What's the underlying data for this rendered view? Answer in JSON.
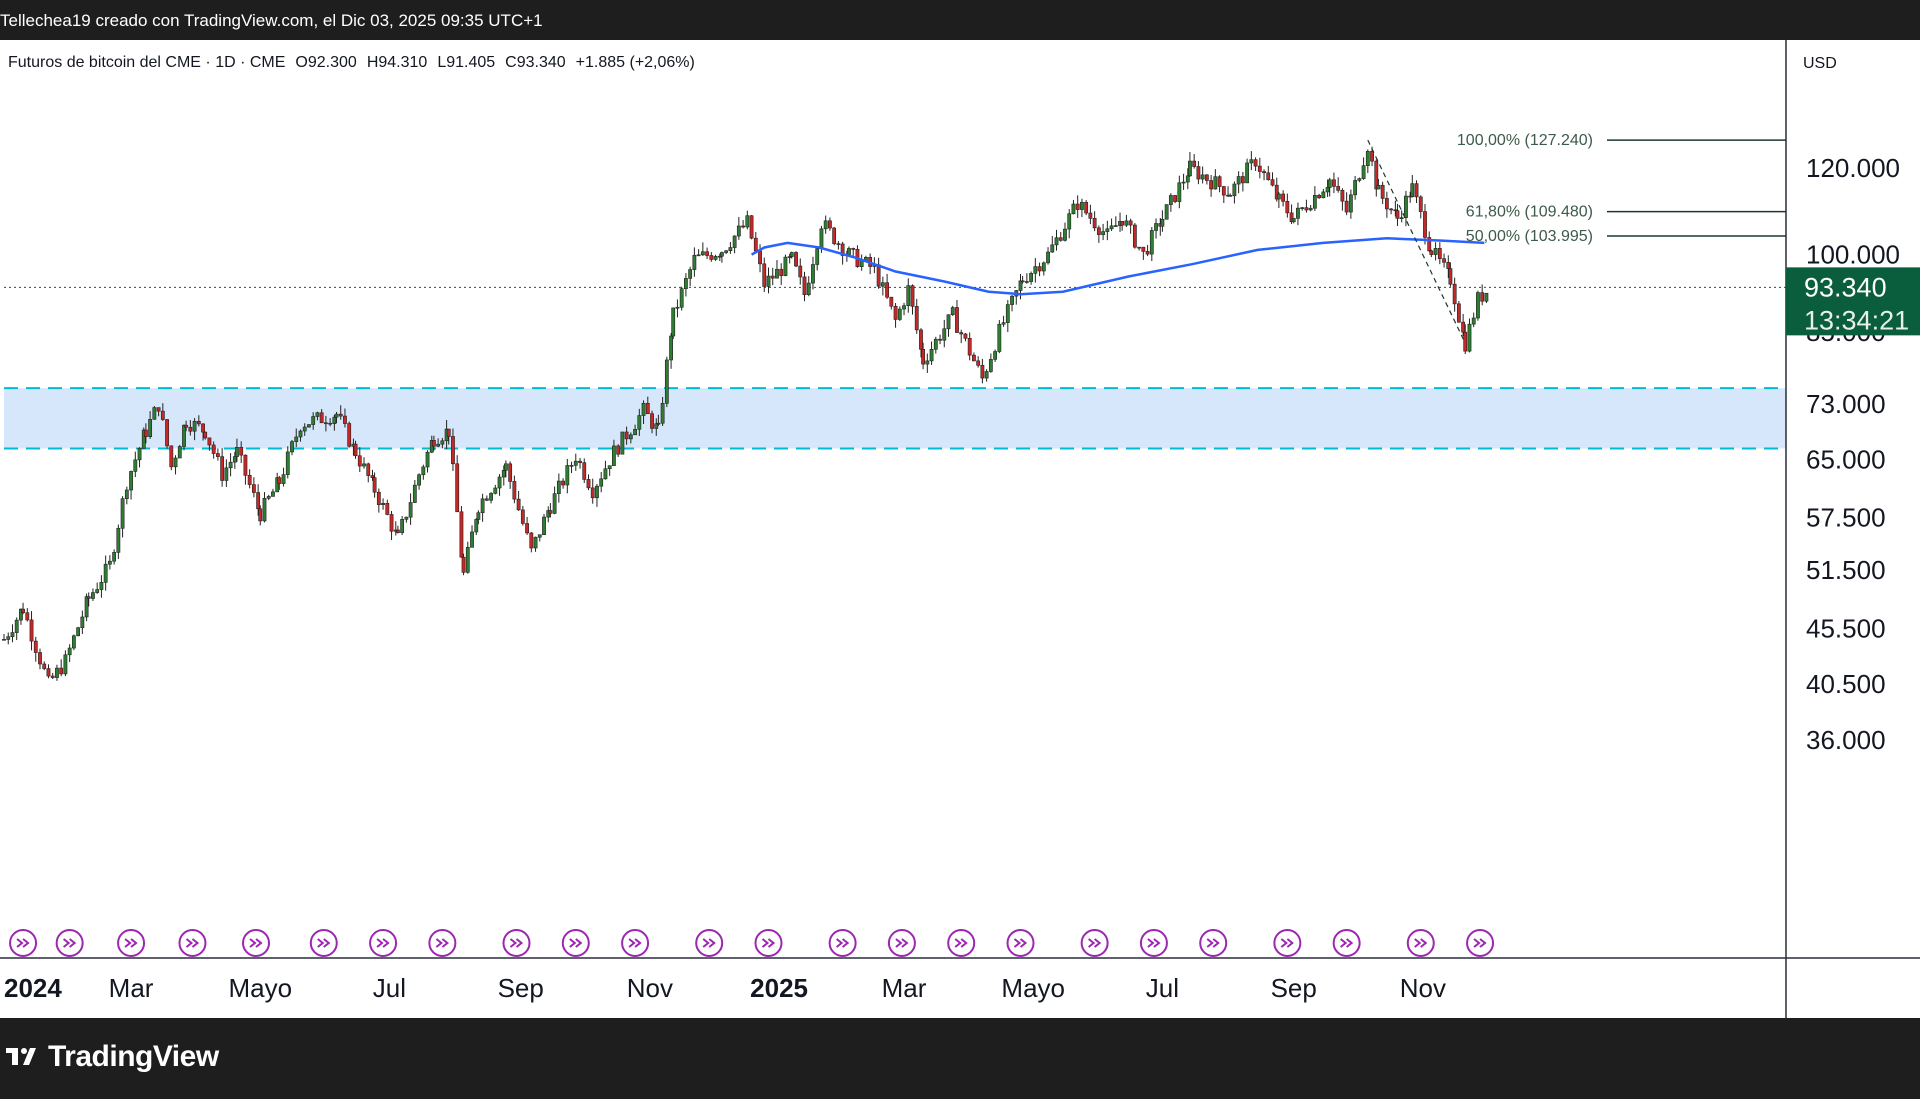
{
  "header": {
    "text": "Tellechea19 creado con TradingView.com, el Dic 03, 2025 09:35 UTC+1"
  },
  "legend": {
    "symbol": "Futuros de bitcoin del CME · 1D · CME",
    "open": "O92.300",
    "high": "H94.310",
    "low": "L91.405",
    "close": "C93.340",
    "change": "+1.885 (+2,06%)"
  },
  "price_axis": {
    "currency": "USD"
  },
  "last_price": {
    "value": "93.340",
    "countdown": "13:34:21"
  },
  "footer": {
    "brand": "TradingView"
  },
  "colors": {
    "up": "#26a69a",
    "down": "#ef5350",
    "candle_up_fill": "#2e7d32",
    "candle_down_fill": "#c62828",
    "ma": "#2962ff",
    "zone_fill": "#d6e6fb",
    "zone_line": "#00bcd4",
    "last_price_bg": "#0b5e3d",
    "event_icon": "#9c27b0"
  },
  "chart_data": {
    "type": "candlestick",
    "scale": "log",
    "y_ticks": [
      36000,
      40500,
      45500,
      51500,
      57500,
      65000,
      73000,
      85000,
      100000,
      120000
    ],
    "y_tick_labels": [
      "36.000",
      "40.500",
      "45.500",
      "51.500",
      "57.500",
      "65.000",
      "73.000",
      "85.000",
      "100.000",
      "120.000"
    ],
    "x_ticks": [
      {
        "label": "2024",
        "date": "2024-01-01",
        "bold": true
      },
      {
        "label": "Mar",
        "date": "2024-03-01"
      },
      {
        "label": "Mayo",
        "date": "2024-05-01"
      },
      {
        "label": "Jul",
        "date": "2024-07-01"
      },
      {
        "label": "Sep",
        "date": "2024-09-01"
      },
      {
        "label": "Nov",
        "date": "2024-11-01"
      },
      {
        "label": "2025",
        "date": "2025-01-01",
        "bold": true
      },
      {
        "label": "Mar",
        "date": "2025-03-01"
      },
      {
        "label": "Mayo",
        "date": "2025-05-01"
      },
      {
        "label": "Jul",
        "date": "2025-07-01"
      },
      {
        "label": "Sep",
        "date": "2025-09-01"
      },
      {
        "label": "Nov",
        "date": "2025-11-01"
      }
    ],
    "price_path": [
      [
        "2024-01-01",
        44500
      ],
      [
        "2024-01-10",
        47500
      ],
      [
        "2024-01-22",
        40500
      ],
      [
        "2024-01-30",
        42500
      ],
      [
        "2024-02-10",
        48500
      ],
      [
        "2024-02-20",
        52000
      ],
      [
        "2024-02-28",
        62000
      ],
      [
        "2024-03-08",
        69000
      ],
      [
        "2024-03-14",
        73000
      ],
      [
        "2024-03-20",
        64000
      ],
      [
        "2024-03-27",
        70500
      ],
      [
        "2024-04-05",
        69000
      ],
      [
        "2024-04-13",
        63000
      ],
      [
        "2024-04-20",
        66000
      ],
      [
        "2024-05-01",
        58000
      ],
      [
        "2024-05-10",
        62000
      ],
      [
        "2024-05-20",
        70000
      ],
      [
        "2024-06-06",
        71500
      ],
      [
        "2024-06-15",
        66000
      ],
      [
        "2024-06-24",
        61000
      ],
      [
        "2024-07-05",
        55000
      ],
      [
        "2024-07-15",
        63000
      ],
      [
        "2024-07-22",
        68000
      ],
      [
        "2024-07-29",
        69000
      ],
      [
        "2024-08-05",
        51000
      ],
      [
        "2024-08-12",
        59000
      ],
      [
        "2024-08-25",
        64000
      ],
      [
        "2024-09-06",
        53500
      ],
      [
        "2024-09-15",
        59000
      ],
      [
        "2024-09-27",
        65500
      ],
      [
        "2024-10-05",
        61000
      ],
      [
        "2024-10-15",
        66000
      ],
      [
        "2024-10-29",
        72000
      ],
      [
        "2024-11-05",
        69000
      ],
      [
        "2024-11-12",
        88000
      ],
      [
        "2024-11-22",
        99000
      ],
      [
        "2024-12-05",
        101000
      ],
      [
        "2024-12-17",
        107000
      ],
      [
        "2024-12-25",
        94000
      ],
      [
        "2025-01-07",
        99000
      ],
      [
        "2025-01-13",
        92000
      ],
      [
        "2025-01-21",
        107000
      ],
      [
        "2025-02-03",
        100000
      ],
      [
        "2025-02-15",
        97000
      ],
      [
        "2025-02-25",
        87000
      ],
      [
        "2025-03-03",
        93000
      ],
      [
        "2025-03-10",
        80000
      ],
      [
        "2025-03-24",
        88000
      ],
      [
        "2025-04-07",
        77000
      ],
      [
        "2025-04-15",
        85000
      ],
      [
        "2025-04-26",
        95000
      ],
      [
        "2025-05-08",
        100000
      ],
      [
        "2025-05-22",
        111500
      ],
      [
        "2025-06-05",
        104000
      ],
      [
        "2025-06-12",
        108000
      ],
      [
        "2025-06-22",
        100000
      ],
      [
        "2025-07-01",
        108000
      ],
      [
        "2025-07-14",
        120000
      ],
      [
        "2025-08-02",
        114000
      ],
      [
        "2025-08-14",
        122000
      ],
      [
        "2025-08-25",
        112000
      ],
      [
        "2025-09-01",
        108000
      ],
      [
        "2025-09-18",
        117000
      ],
      [
        "2025-09-26",
        109500
      ],
      [
        "2025-10-06",
        126000
      ],
      [
        "2025-10-11",
        114000
      ],
      [
        "2025-10-20",
        108000
      ],
      [
        "2025-10-27",
        115000
      ],
      [
        "2025-11-05",
        101000
      ],
      [
        "2025-11-14",
        95000
      ],
      [
        "2025-11-21",
        83000
      ],
      [
        "2025-11-27",
        91000
      ],
      [
        "2025-12-03",
        93340
      ]
    ],
    "moving_average": [
      [
        "2024-12-19",
        100000
      ],
      [
        "2024-12-25",
        101500
      ],
      [
        "2025-01-05",
        102500
      ],
      [
        "2025-01-20",
        101500
      ],
      [
        "2025-02-05",
        99500
      ],
      [
        "2025-02-25",
        96500
      ],
      [
        "2025-03-20",
        94500
      ],
      [
        "2025-04-10",
        92500
      ],
      [
        "2025-04-25",
        92000
      ],
      [
        "2025-05-15",
        92500
      ],
      [
        "2025-06-15",
        95500
      ],
      [
        "2025-07-15",
        98000
      ],
      [
        "2025-08-15",
        101000
      ],
      [
        "2025-09-15",
        102500
      ],
      [
        "2025-10-15",
        103500
      ],
      [
        "2025-11-10",
        103000
      ],
      [
        "2025-11-30",
        102500
      ]
    ],
    "zone": {
      "top": 75500,
      "bottom": 66500
    },
    "fib_levels": [
      {
        "label": "100,00% (127.240)",
        "value": 127240
      },
      {
        "label": "61,80% (109.480)",
        "value": 109480
      },
      {
        "label": "50,00% (103.995)",
        "value": 103995
      }
    ],
    "last_price": 93340,
    "event_dates": [
      "2024-01-10",
      "2024-02-01",
      "2024-03-01",
      "2024-03-30",
      "2024-04-29",
      "2024-05-31",
      "2024-06-28",
      "2024-07-26",
      "2024-08-30",
      "2024-09-27",
      "2024-10-25",
      "2024-11-29",
      "2024-12-27",
      "2025-01-31",
      "2025-02-28",
      "2025-03-28",
      "2025-04-25",
      "2025-05-30",
      "2025-06-27",
      "2025-07-25",
      "2025-08-29",
      "2025-09-26",
      "2025-10-31",
      "2025-11-28"
    ]
  }
}
